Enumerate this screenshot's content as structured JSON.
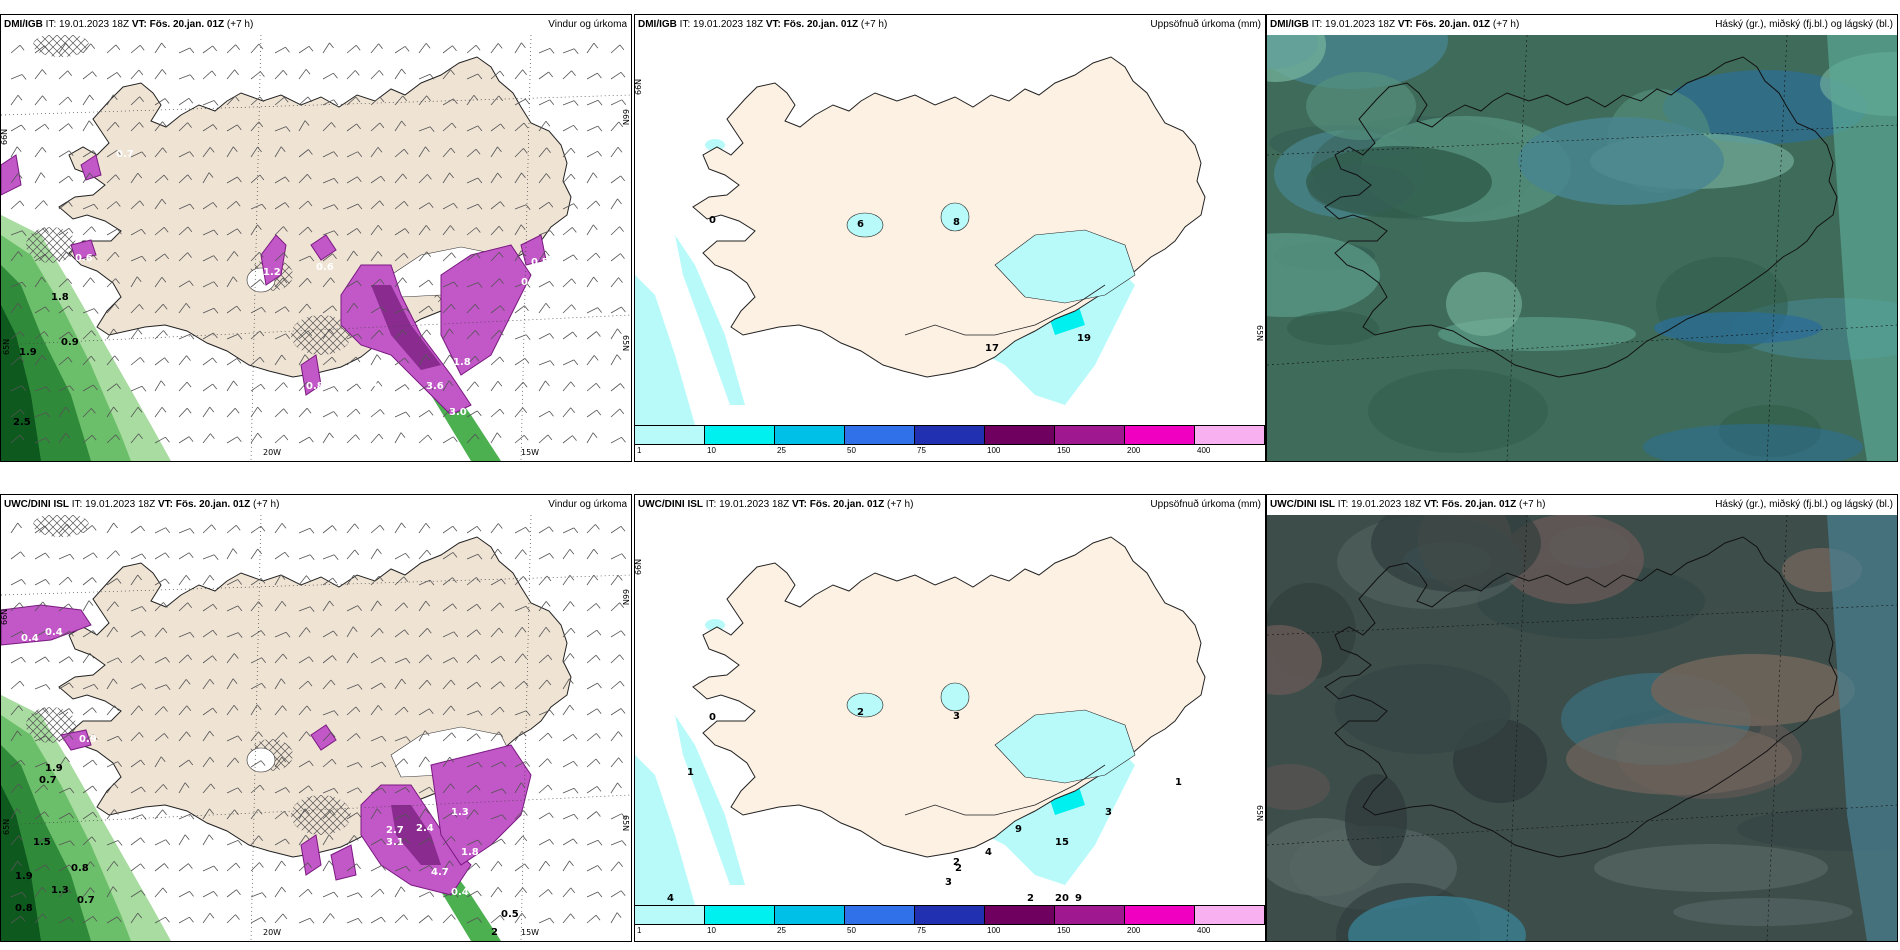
{
  "panels": [
    {
      "id": "p1",
      "model": "DMI/IGB",
      "it_label": "IT:",
      "it": "19.01.2023 18Z",
      "vt_label": "VT:",
      "vt": "Fös. 20.jan. 01Z",
      "lead": "(+7 h)",
      "product": "Vindur og úrkoma",
      "kind": "wind",
      "labels_white": [
        "0.7",
        "0.6",
        "1.2",
        "0.6",
        "0.8",
        "4.0",
        "3.6",
        "3.0",
        "1.8",
        "0.4",
        "0.5"
      ],
      "labels_dark": [
        "1.9",
        "0.9",
        "2.5",
        "1.8"
      ],
      "axis": [
        "66N",
        "65N",
        "20W",
        "15W",
        "66N",
        "65N"
      ]
    },
    {
      "id": "p2",
      "model": "DMI/IGB",
      "it_label": "IT:",
      "it": "19.01.2023 18Z",
      "vt_label": "VT:",
      "vt": "Fös. 20.jan. 01Z",
      "lead": "(+7 h)",
      "product": "Uppsöfnuð úrkoma (mm)",
      "kind": "precip",
      "labels_dark": [
        "0",
        "6",
        "8",
        "17",
        "19"
      ],
      "axis": [
        "66N",
        "65N"
      ]
    },
    {
      "id": "p3",
      "model": "DMI/IGB",
      "it_label": "IT:",
      "it": "19.01.2023 18Z",
      "vt_label": "VT:",
      "vt": "Fös. 20.jan. 01Z",
      "lead": "(+7 h)",
      "product": "Háský (gr.), miðský (fj.bl.) og lágský (bl.)",
      "kind": "cloud"
    },
    {
      "id": "p4",
      "model": "UWC/DINI ISL",
      "it_label": "IT:",
      "it": "19.01.2023 18Z",
      "vt_label": "VT:",
      "vt": "Fös. 20.jan. 01Z",
      "lead": "(+7 h)",
      "product": "Vindur og úrkoma",
      "kind": "wind",
      "labels_white": [
        "0.4",
        "0.4",
        "0.9",
        "2.7",
        "3.1",
        "2.4",
        "1.3",
        "4.7",
        "1.8",
        "0.4",
        "0.5"
      ],
      "labels_dark": [
        "1.9",
        "0.7",
        "1.5",
        "0.8",
        "1.9",
        "0.8",
        "1.3",
        "0.7",
        "0.5",
        "2"
      ],
      "axis": [
        "66N",
        "65N",
        "20W",
        "15W",
        "66N",
        "65N"
      ]
    },
    {
      "id": "p5",
      "model": "UWC/DINI ISL",
      "it_label": "IT:",
      "it": "19.01.2023 18Z",
      "vt_label": "VT:",
      "vt": "Fös. 20.jan. 01Z",
      "lead": "(+7 h)",
      "product": "Uppsöfnuð úrkoma (mm)",
      "kind": "precip",
      "labels_dark": [
        "0",
        "2",
        "3",
        "1",
        "9",
        "15",
        "4",
        "2",
        "2",
        "3",
        "20",
        "9",
        "2",
        "4",
        "1",
        "3"
      ],
      "axis": [
        "66N",
        "65N"
      ]
    },
    {
      "id": "p6",
      "model": "UWC/DINI ISL",
      "it_label": "IT:",
      "it": "19.01.2023 18Z",
      "vt_label": "VT:",
      "vt": "Fös. 20.jan. 01Z",
      "lead": "(+7 h)",
      "product": "Háský (gr.), miðský (fj.bl.) og lágský (bl.)",
      "kind": "cloud"
    }
  ],
  "colorbar": {
    "ticks": [
      "1",
      "10",
      "25",
      "50",
      "75",
      "100",
      "150",
      "200",
      "400"
    ],
    "colors": [
      "#b8fafa",
      "#00f0f0",
      "#00c0e8",
      "#3070e8",
      "#2030b0",
      "#700060",
      "#a01890",
      "#f000c0",
      "#f8b0f0"
    ]
  }
}
